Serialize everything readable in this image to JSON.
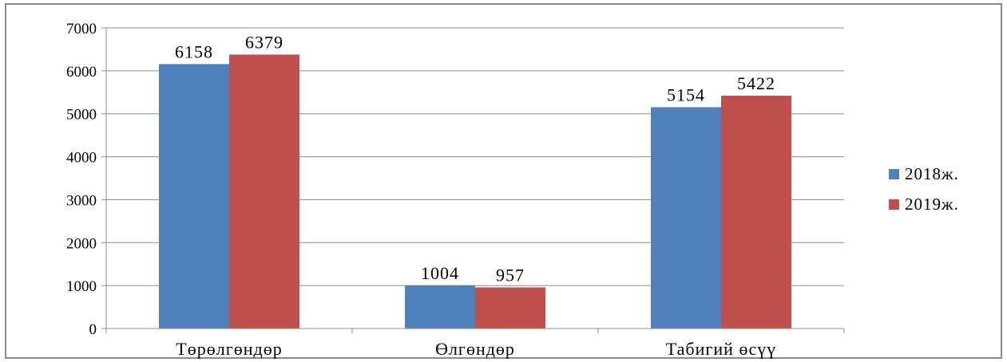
{
  "chart_data": {
    "type": "bar",
    "categories": [
      "Төрөлгөндөр",
      "Өлгөндөр",
      "Табигий өсүү"
    ],
    "series": [
      {
        "name": "2018ж.",
        "color": "#4F81BD",
        "values": [
          6158,
          1004,
          5154
        ]
      },
      {
        "name": "2019ж.",
        "color": "#C0504D",
        "values": [
          6379,
          957,
          5422
        ]
      }
    ],
    "y_ticks": [
      0,
      1000,
      2000,
      3000,
      4000,
      5000,
      6000,
      7000
    ],
    "ylim": [
      0,
      7000
    ],
    "gridlines": true,
    "legend_position": "right",
    "data_labels": true
  }
}
